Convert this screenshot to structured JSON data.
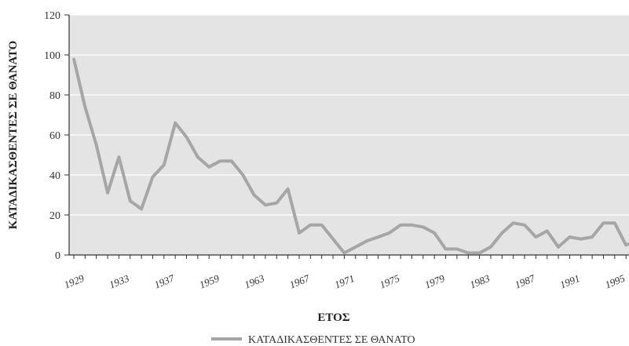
{
  "chart_data": {
    "type": "line",
    "title": "",
    "xlabel": "ΕΤΟΣ",
    "ylabel": "ΚΑΤΑΔΙΚΑΣΘΕΝΤΕΣ ΣΕ ΘΑΝΑΤΟ",
    "ylim": [
      0,
      120
    ],
    "yticks": [
      "0",
      "20",
      "40",
      "60",
      "80",
      "100",
      "120"
    ],
    "xtick_labels": [
      "1929",
      "1933",
      "1937",
      "1959",
      "1963",
      "1967",
      "1971",
      "1975",
      "1979",
      "1983",
      "1987",
      "1991",
      "1995"
    ],
    "grid": true,
    "legend_position": "bottom",
    "colors": {
      "line": "#a6a6a6",
      "plot_bg": "#e4e4e4",
      "grid": "#ffffff"
    },
    "series": [
      {
        "name": "ΚΑΤΑΔΙΚΑΣΘΕΝΤΕΣ ΣΕ ΘΑΝΑΤΟ",
        "values": [
          98,
          74,
          55,
          31,
          49,
          27,
          23,
          39,
          45,
          66,
          59,
          49,
          44,
          47,
          47,
          40,
          30,
          25,
          26,
          33,
          11,
          15,
          15,
          8,
          1,
          4,
          7,
          9,
          11,
          15,
          15,
          14,
          11,
          3,
          3,
          1,
          1,
          4,
          11,
          16,
          15,
          9,
          12,
          4,
          9,
          8,
          9,
          16,
          16,
          5,
          7
        ]
      }
    ]
  }
}
